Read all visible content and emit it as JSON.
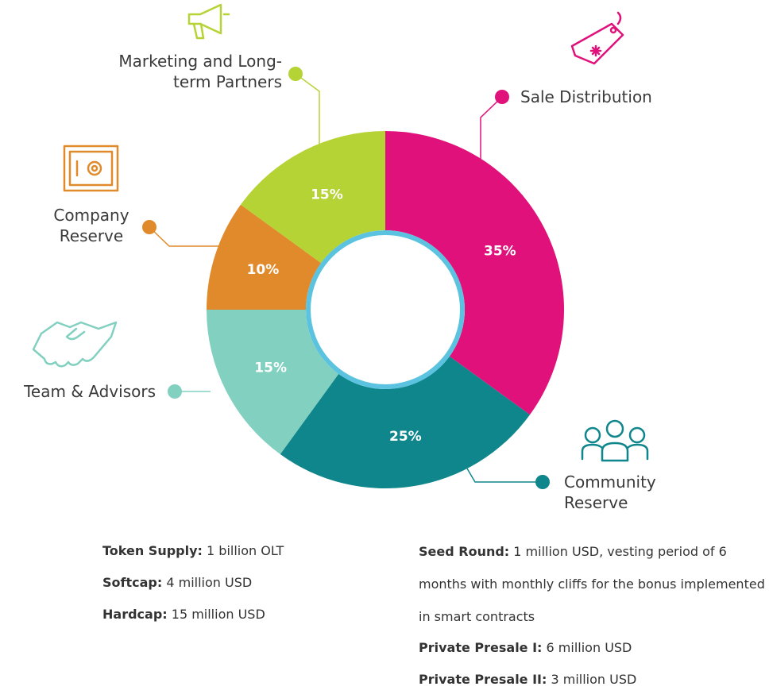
{
  "chart_data": {
    "type": "pie",
    "categories": [
      "Sale Distribution",
      "Community Reserve",
      "Team & Advisors",
      "Company Reserve",
      "Marketing and Long-term Partners"
    ],
    "values": [
      35,
      25,
      15,
      10,
      15
    ],
    "value_labels": [
      "35%",
      "25%",
      "15%",
      "10%",
      "15%"
    ],
    "colors": [
      "#e0117a",
      "#0f868c",
      "#82d0c0",
      "#e08a2c",
      "#b5d334"
    ]
  },
  "notes_left": [
    {
      "label": "Token Supply:",
      "text": "1 billion OLT"
    },
    {
      "label": "Softcap:",
      "text": "4 million USD"
    },
    {
      "label": "Hardcap:",
      "text": "15 million USD"
    }
  ],
  "notes_right": [
    {
      "label": "Seed Round:",
      "text": "1 million USD, vesting period of 6 months with monthly cliffs for the bonus implemented in smart contracts"
    },
    {
      "label": "Private Presale I:",
      "text": "6 million USD"
    },
    {
      "label": "Private Presale II:",
      "text": "3 million USD"
    }
  ]
}
